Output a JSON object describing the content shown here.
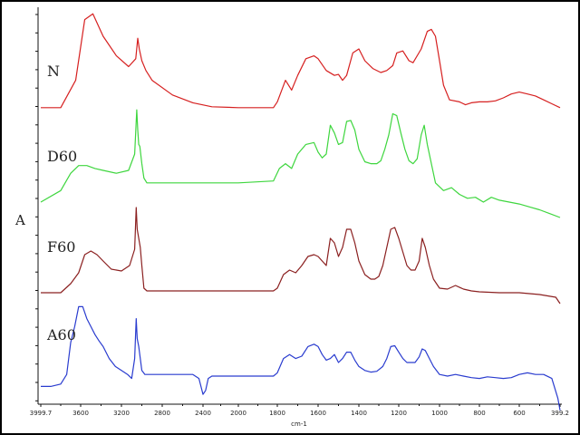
{
  "chart_data": {
    "type": "line",
    "title": "",
    "xlabel": "cm-1",
    "ylabel": "A",
    "x_reversed": true,
    "xlim": [
      3999.7,
      399.2
    ],
    "tick_labels": [
      "3999.7",
      "3600",
      "3200",
      "2800",
      "2400",
      "2000",
      "1800",
      "1600",
      "1400",
      "1200",
      "1000",
      "800",
      "600",
      "399.2"
    ],
    "grid": false,
    "legend": "none",
    "series": [
      {
        "name": "N",
        "color": "#d62020",
        "points": [
          [
            3999.7,
            0.02
          ],
          [
            3800,
            0.02
          ],
          [
            3650,
            0.3
          ],
          [
            3560,
            0.92
          ],
          [
            3480,
            0.98
          ],
          [
            3380,
            0.75
          ],
          [
            3250,
            0.55
          ],
          [
            3130,
            0.44
          ],
          [
            3060,
            0.52
          ],
          [
            3040,
            0.73
          ],
          [
            3025,
            0.62
          ],
          [
            3000,
            0.5
          ],
          [
            2960,
            0.4
          ],
          [
            2900,
            0.3
          ],
          [
            2700,
            0.15
          ],
          [
            2500,
            0.07
          ],
          [
            2300,
            0.03
          ],
          [
            2000,
            0.02
          ],
          [
            1820,
            0.02
          ],
          [
            1800,
            0.08
          ],
          [
            1760,
            0.3
          ],
          [
            1730,
            0.2
          ],
          [
            1700,
            0.35
          ],
          [
            1660,
            0.52
          ],
          [
            1620,
            0.55
          ],
          [
            1600,
            0.52
          ],
          [
            1560,
            0.4
          ],
          [
            1520,
            0.35
          ],
          [
            1500,
            0.36
          ],
          [
            1480,
            0.3
          ],
          [
            1460,
            0.35
          ],
          [
            1430,
            0.58
          ],
          [
            1400,
            0.62
          ],
          [
            1370,
            0.5
          ],
          [
            1330,
            0.42
          ],
          [
            1290,
            0.38
          ],
          [
            1260,
            0.4
          ],
          [
            1230,
            0.45
          ],
          [
            1210,
            0.58
          ],
          [
            1180,
            0.6
          ],
          [
            1150,
            0.5
          ],
          [
            1130,
            0.48
          ],
          [
            1090,
            0.62
          ],
          [
            1060,
            0.8
          ],
          [
            1040,
            0.82
          ],
          [
            1020,
            0.75
          ],
          [
            1000,
            0.5
          ],
          [
            980,
            0.25
          ],
          [
            950,
            0.1
          ],
          [
            900,
            0.08
          ],
          [
            870,
            0.05
          ],
          [
            840,
            0.07
          ],
          [
            800,
            0.08
          ],
          [
            760,
            0.08
          ],
          [
            720,
            0.09
          ],
          [
            680,
            0.12
          ],
          [
            640,
            0.16
          ],
          [
            600,
            0.18
          ],
          [
            560,
            0.16
          ],
          [
            520,
            0.14
          ],
          [
            480,
            0.1
          ],
          [
            440,
            0.06
          ],
          [
            399.2,
            0.02
          ]
        ]
      },
      {
        "name": "D60",
        "color": "#3ed63e",
        "points": [
          [
            3999.7,
            0.0
          ],
          [
            3800,
            0.12
          ],
          [
            3700,
            0.3
          ],
          [
            3620,
            0.38
          ],
          [
            3540,
            0.38
          ],
          [
            3460,
            0.35
          ],
          [
            3380,
            0.33
          ],
          [
            3250,
            0.3
          ],
          [
            3130,
            0.33
          ],
          [
            3070,
            0.5
          ],
          [
            3050,
            0.96
          ],
          [
            3040,
            0.75
          ],
          [
            3030,
            0.6
          ],
          [
            3020,
            0.58
          ],
          [
            3000,
            0.4
          ],
          [
            2980,
            0.25
          ],
          [
            2950,
            0.2
          ],
          [
            2600,
            0.2
          ],
          [
            2300,
            0.2
          ],
          [
            2000,
            0.2
          ],
          [
            1820,
            0.22
          ],
          [
            1790,
            0.35
          ],
          [
            1760,
            0.4
          ],
          [
            1730,
            0.35
          ],
          [
            1700,
            0.5
          ],
          [
            1660,
            0.6
          ],
          [
            1620,
            0.62
          ],
          [
            1600,
            0.52
          ],
          [
            1580,
            0.46
          ],
          [
            1560,
            0.5
          ],
          [
            1540,
            0.8
          ],
          [
            1520,
            0.72
          ],
          [
            1500,
            0.6
          ],
          [
            1480,
            0.62
          ],
          [
            1460,
            0.84
          ],
          [
            1440,
            0.85
          ],
          [
            1420,
            0.75
          ],
          [
            1400,
            0.55
          ],
          [
            1370,
            0.42
          ],
          [
            1340,
            0.4
          ],
          [
            1310,
            0.4
          ],
          [
            1290,
            0.43
          ],
          [
            1270,
            0.55
          ],
          [
            1250,
            0.7
          ],
          [
            1230,
            0.92
          ],
          [
            1210,
            0.9
          ],
          [
            1190,
            0.72
          ],
          [
            1170,
            0.55
          ],
          [
            1150,
            0.43
          ],
          [
            1130,
            0.4
          ],
          [
            1110,
            0.45
          ],
          [
            1090,
            0.7
          ],
          [
            1075,
            0.8
          ],
          [
            1060,
            0.6
          ],
          [
            1040,
            0.4
          ],
          [
            1020,
            0.2
          ],
          [
            980,
            0.12
          ],
          [
            940,
            0.15
          ],
          [
            900,
            0.08
          ],
          [
            860,
            0.04
          ],
          [
            820,
            0.05
          ],
          [
            780,
            0.0
          ],
          [
            740,
            0.05
          ],
          [
            700,
            0.02
          ],
          [
            650,
            0.0
          ],
          [
            600,
            -0.02
          ],
          [
            550,
            -0.05
          ],
          [
            500,
            -0.08
          ],
          [
            450,
            -0.12
          ],
          [
            399.2,
            -0.16
          ]
        ]
      },
      {
        "name": "F60",
        "color": "#8b2020",
        "points": [
          [
            3999.7,
            0.0
          ],
          [
            3800,
            0.0
          ],
          [
            3700,
            0.1
          ],
          [
            3620,
            0.22
          ],
          [
            3560,
            0.42
          ],
          [
            3500,
            0.46
          ],
          [
            3440,
            0.42
          ],
          [
            3380,
            0.35
          ],
          [
            3300,
            0.26
          ],
          [
            3200,
            0.24
          ],
          [
            3120,
            0.3
          ],
          [
            3070,
            0.48
          ],
          [
            3055,
            0.94
          ],
          [
            3045,
            0.7
          ],
          [
            3030,
            0.6
          ],
          [
            3015,
            0.5
          ],
          [
            3000,
            0.3
          ],
          [
            2980,
            0.05
          ],
          [
            2950,
            0.02
          ],
          [
            2500,
            0.02
          ],
          [
            2000,
            0.02
          ],
          [
            1820,
            0.02
          ],
          [
            1800,
            0.05
          ],
          [
            1770,
            0.2
          ],
          [
            1740,
            0.25
          ],
          [
            1710,
            0.22
          ],
          [
            1680,
            0.3
          ],
          [
            1650,
            0.4
          ],
          [
            1620,
            0.42
          ],
          [
            1600,
            0.4
          ],
          [
            1580,
            0.35
          ],
          [
            1560,
            0.3
          ],
          [
            1540,
            0.6
          ],
          [
            1520,
            0.55
          ],
          [
            1500,
            0.4
          ],
          [
            1480,
            0.5
          ],
          [
            1460,
            0.7
          ],
          [
            1440,
            0.7
          ],
          [
            1420,
            0.55
          ],
          [
            1400,
            0.35
          ],
          [
            1370,
            0.2
          ],
          [
            1340,
            0.15
          ],
          [
            1320,
            0.15
          ],
          [
            1300,
            0.18
          ],
          [
            1280,
            0.3
          ],
          [
            1260,
            0.5
          ],
          [
            1240,
            0.7
          ],
          [
            1220,
            0.72
          ],
          [
            1200,
            0.6
          ],
          [
            1180,
            0.45
          ],
          [
            1160,
            0.3
          ],
          [
            1140,
            0.25
          ],
          [
            1120,
            0.25
          ],
          [
            1100,
            0.35
          ],
          [
            1085,
            0.6
          ],
          [
            1070,
            0.5
          ],
          [
            1050,
            0.3
          ],
          [
            1030,
            0.15
          ],
          [
            1000,
            0.05
          ],
          [
            960,
            0.04
          ],
          [
            920,
            0.08
          ],
          [
            880,
            0.04
          ],
          [
            840,
            0.02
          ],
          [
            800,
            0.01
          ],
          [
            700,
            0.0
          ],
          [
            600,
            0.0
          ],
          [
            500,
            -0.02
          ],
          [
            420,
            -0.05
          ],
          [
            399.2,
            -0.12
          ]
        ]
      },
      {
        "name": "A60",
        "color": "#2a3ccf",
        "points": [
          [
            3999.7,
            -0.05
          ],
          [
            3900,
            -0.05
          ],
          [
            3800,
            -0.02
          ],
          [
            3740,
            0.1
          ],
          [
            3700,
            0.5
          ],
          [
            3660,
            0.7
          ],
          [
            3620,
            0.95
          ],
          [
            3580,
            0.95
          ],
          [
            3540,
            0.8
          ],
          [
            3500,
            0.7
          ],
          [
            3460,
            0.6
          ],
          [
            3420,
            0.52
          ],
          [
            3380,
            0.45
          ],
          [
            3320,
            0.3
          ],
          [
            3260,
            0.2
          ],
          [
            3200,
            0.15
          ],
          [
            3140,
            0.1
          ],
          [
            3100,
            0.05
          ],
          [
            3070,
            0.3
          ],
          [
            3055,
            0.8
          ],
          [
            3045,
            0.55
          ],
          [
            3030,
            0.45
          ],
          [
            3015,
            0.3
          ],
          [
            3000,
            0.15
          ],
          [
            2970,
            0.1
          ],
          [
            2950,
            0.1
          ],
          [
            2600,
            0.1
          ],
          [
            2500,
            0.1
          ],
          [
            2440,
            0.05
          ],
          [
            2400,
            -0.15
          ],
          [
            2370,
            -0.1
          ],
          [
            2340,
            0.05
          ],
          [
            2300,
            0.08
          ],
          [
            2000,
            0.08
          ],
          [
            1820,
            0.08
          ],
          [
            1800,
            0.12
          ],
          [
            1770,
            0.3
          ],
          [
            1740,
            0.35
          ],
          [
            1710,
            0.3
          ],
          [
            1680,
            0.33
          ],
          [
            1650,
            0.45
          ],
          [
            1620,
            0.48
          ],
          [
            1600,
            0.45
          ],
          [
            1580,
            0.35
          ],
          [
            1560,
            0.28
          ],
          [
            1540,
            0.3
          ],
          [
            1520,
            0.35
          ],
          [
            1500,
            0.25
          ],
          [
            1480,
            0.3
          ],
          [
            1460,
            0.38
          ],
          [
            1440,
            0.38
          ],
          [
            1420,
            0.28
          ],
          [
            1400,
            0.2
          ],
          [
            1370,
            0.15
          ],
          [
            1340,
            0.13
          ],
          [
            1310,
            0.14
          ],
          [
            1280,
            0.2
          ],
          [
            1260,
            0.3
          ],
          [
            1240,
            0.45
          ],
          [
            1220,
            0.46
          ],
          [
            1200,
            0.38
          ],
          [
            1180,
            0.3
          ],
          [
            1160,
            0.25
          ],
          [
            1140,
            0.25
          ],
          [
            1120,
            0.25
          ],
          [
            1100,
            0.32
          ],
          [
            1085,
            0.42
          ],
          [
            1070,
            0.4
          ],
          [
            1050,
            0.3
          ],
          [
            1030,
            0.2
          ],
          [
            1000,
            0.1
          ],
          [
            960,
            0.08
          ],
          [
            920,
            0.1
          ],
          [
            880,
            0.08
          ],
          [
            840,
            0.06
          ],
          [
            800,
            0.05
          ],
          [
            760,
            0.07
          ],
          [
            720,
            0.06
          ],
          [
            680,
            0.05
          ],
          [
            640,
            0.06
          ],
          [
            600,
            0.1
          ],
          [
            560,
            0.12
          ],
          [
            520,
            0.1
          ],
          [
            480,
            0.1
          ],
          [
            440,
            0.05
          ],
          [
            410,
            -0.2
          ],
          [
            399.2,
            -0.35
          ]
        ]
      }
    ]
  }
}
